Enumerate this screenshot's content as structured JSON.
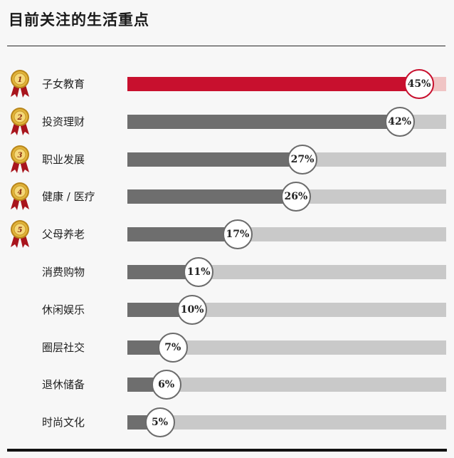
{
  "title": "目前关注的生活重点",
  "colors": {
    "highlight_bar": "#c8102e",
    "highlight_track": "#f0c4c4",
    "bar": "#6e6e6e",
    "track": "#c9c9c9",
    "medal_gold": "#e2b43a",
    "medal_ribbon": "#a8141c"
  },
  "medal_numbers": [
    "1",
    "2",
    "3",
    "4",
    "5"
  ],
  "chart_data": {
    "type": "bar",
    "orientation": "horizontal",
    "title": "目前关注的生活重点",
    "categories": [
      "子女教育",
      "投资理财",
      "职业发展",
      "健康 / 医疗",
      "父母养老",
      "消费购物",
      "休闲娱乐",
      "圈层社交",
      "退休储备",
      "时尚文化"
    ],
    "values": [
      45,
      42,
      27,
      26,
      17,
      11,
      10,
      7,
      6,
      5
    ],
    "value_labels": [
      "45%",
      "42%",
      "27%",
      "26%",
      "17%",
      "11%",
      "10%",
      "7%",
      "6%",
      "5%"
    ],
    "unit": "%",
    "xlim": [
      0,
      45
    ],
    "highlighted_index": 0,
    "medal_ranks": 5,
    "grid": false,
    "legend": "none"
  }
}
